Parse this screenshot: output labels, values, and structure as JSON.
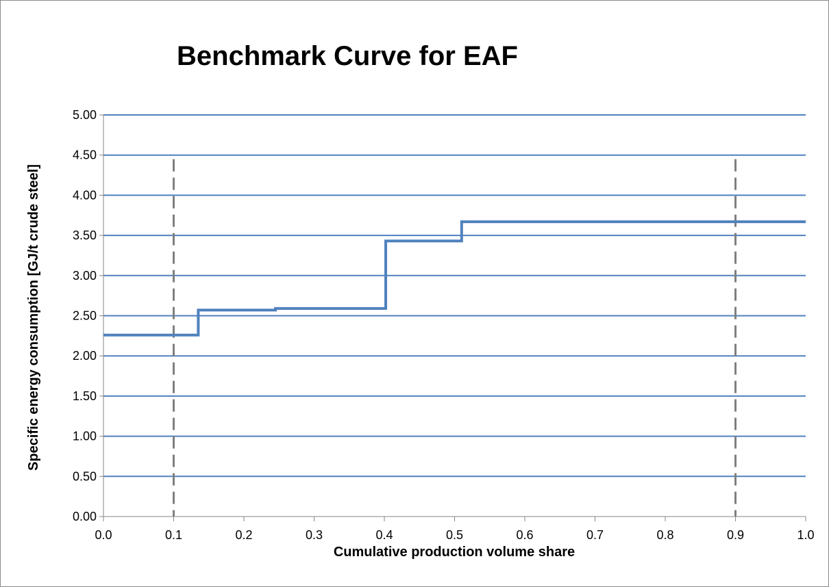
{
  "chart_data": {
    "type": "line",
    "title": "Benchmark Curve for EAF",
    "xlabel": "Cumulative production volume share",
    "ylabel": "Specific energy consumption [GJ/t crude steel]",
    "xlim": [
      0.0,
      1.0
    ],
    "ylim": [
      0.0,
      5.0
    ],
    "x_ticks": [
      "0.0",
      "0.1",
      "0.2",
      "0.3",
      "0.4",
      "0.5",
      "0.6",
      "0.7",
      "0.8",
      "0.9",
      "1.0"
    ],
    "y_ticks": [
      "0.00",
      "0.50",
      "1.00",
      "1.50",
      "2.00",
      "2.50",
      "3.00",
      "3.50",
      "4.00",
      "4.50",
      "5.00"
    ],
    "grid": "horizontal",
    "step_curve": {
      "x": [
        0.0,
        0.135,
        0.135,
        0.245,
        0.245,
        0.402,
        0.402,
        0.51,
        0.51,
        1.0
      ],
      "y": [
        2.26,
        2.26,
        2.57,
        2.57,
        2.59,
        2.59,
        3.43,
        3.43,
        3.67,
        3.67
      ]
    },
    "reference_lines_x": [
      0.1,
      0.9
    ],
    "colors": {
      "curve": "#4f81bd",
      "gridlines": "#4f81bd",
      "reference_lines": "#7f7f7f",
      "axis": "#868686"
    }
  }
}
